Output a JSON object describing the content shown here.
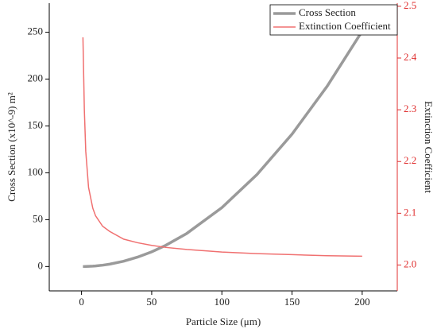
{
  "chart_data": {
    "type": "line",
    "x_label": "Particle Size (μm)",
    "y_label": "Cross Section (x10^-9) m²",
    "y2_label": "Extinction Coefficient",
    "x": [
      1,
      2,
      3,
      5,
      8,
      10,
      15,
      20,
      30,
      40,
      50,
      60,
      75,
      100,
      125,
      150,
      175,
      200
    ],
    "series": [
      {
        "name": "Cross Section",
        "color": "#9a9a9a",
        "axis": "y",
        "values": [
          0.006,
          0.025,
          0.057,
          0.157,
          0.4,
          0.63,
          1.41,
          2.51,
          5.65,
          10.05,
          15.7,
          22.6,
          35.3,
          62.8,
          98.1,
          141.3,
          192.3,
          251.2
        ]
      },
      {
        "name": "Extinction Coefficient",
        "color": "#f07070",
        "axis": "y2",
        "values": [
          2.44,
          2.3,
          2.22,
          2.15,
          2.11,
          2.095,
          2.075,
          2.065,
          2.05,
          2.043,
          2.038,
          2.034,
          2.03,
          2.025,
          2.022,
          2.02,
          2.018,
          2.017
        ]
      }
    ],
    "xlim": [
      -23,
      225
    ],
    "xticks": [
      0,
      50,
      100,
      150,
      200
    ],
    "ylim": [
      -26,
      281
    ],
    "yticks": [
      0,
      50,
      100,
      150,
      200,
      250
    ],
    "y2lim": [
      1.95,
      2.506
    ],
    "y2ticks": [
      {
        "value": 2.0,
        "label": "2.0"
      },
      2.1,
      2.2,
      2.3,
      2.4,
      2.5
    ],
    "y2_color": "#e03030",
    "legend": "top-right"
  }
}
